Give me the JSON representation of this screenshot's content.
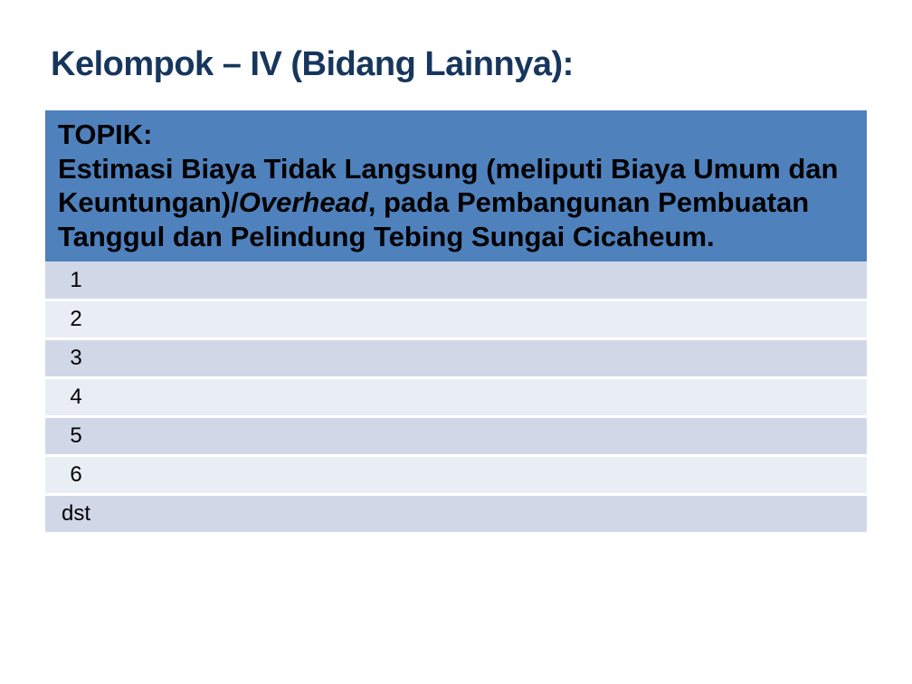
{
  "title": {
    "text": "Kelompok – IV (Bidang Lainnya):",
    "color": "#17365d",
    "fontsize": 38
  },
  "topic": {
    "label": "TOPIK:",
    "body_pre": "Estimasi Biaya Tidak Langsung (meliputi Biaya Umum dan Keuntungan)/",
    "body_italic": "Overhead",
    "body_post": ", pada Pembangunan Pembuatan Tanggul dan Pelindung Tebing Sungai Cicaheum.",
    "background_color": "#4f81bd",
    "text_color": "#000000",
    "fontsize": 31
  },
  "table": {
    "row_colors": {
      "odd": "#d0d8e8",
      "even": "#e9edf4"
    },
    "num_fontsize": 24,
    "rows": [
      {
        "num": "1",
        "value": ""
      },
      {
        "num": "2",
        "value": ""
      },
      {
        "num": "3",
        "value": ""
      },
      {
        "num": "4",
        "value": ""
      },
      {
        "num": "5",
        "value": ""
      },
      {
        "num": "6",
        "value": ""
      },
      {
        "num": "dst",
        "value": ""
      }
    ]
  }
}
